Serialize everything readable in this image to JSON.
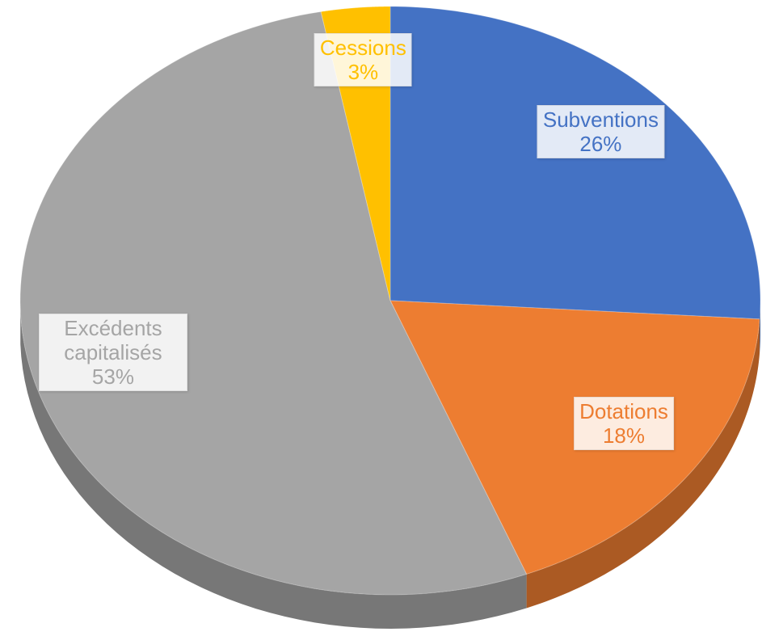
{
  "chart_data": {
    "type": "pie",
    "categories": [
      "Subventions",
      "Dotations",
      "Excédents capitalisés",
      "Cessions"
    ],
    "values": [
      26,
      18,
      53,
      3
    ],
    "value_labels": [
      "26%",
      "18%",
      "53%",
      "3%"
    ],
    "colors": [
      "#4472c4",
      "#ed7d31",
      "#a5a5a5",
      "#ffc000"
    ],
    "start_angle": 0,
    "direction": "clockwise",
    "three_d": true
  }
}
